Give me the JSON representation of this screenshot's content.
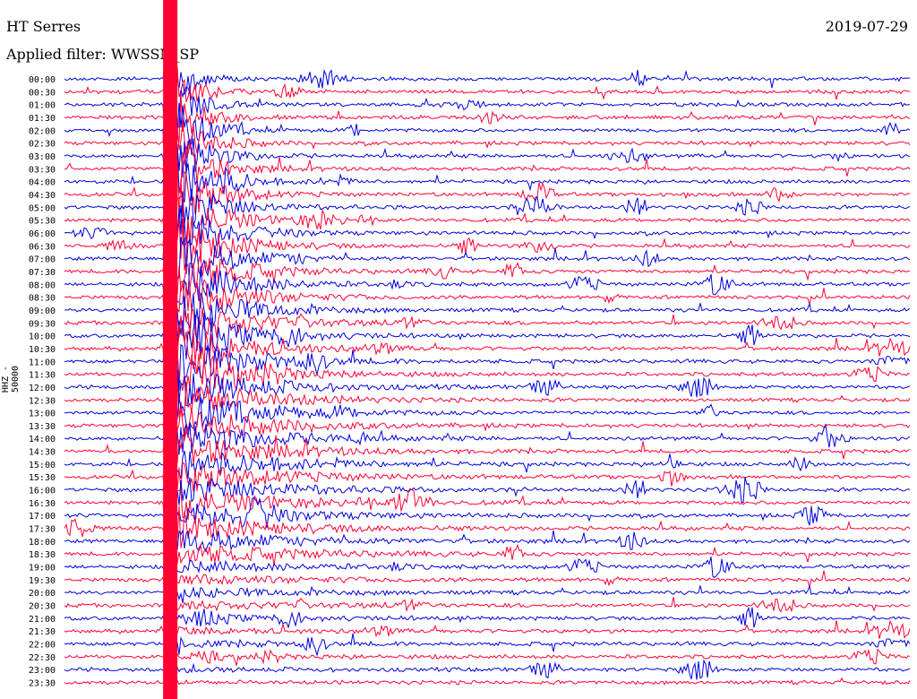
{
  "header": {
    "station": "HT Serres",
    "date": "2019-07-29",
    "filter": "Applied filter: WWSSN_SP"
  },
  "axis": {
    "ylabel": "HHZ - 50000"
  },
  "colors": {
    "even_trace": "#0000dd",
    "odd_trace": "#ff0033",
    "text": "#000000"
  },
  "chart_data": {
    "type": "line",
    "title": "HT Serres",
    "channel": "HHZ",
    "filter": "WWSSN_SP",
    "scale": 50000,
    "rows": [
      "00:00",
      "00:30",
      "01:00",
      "01:30",
      "02:00",
      "02:30",
      "03:00",
      "03:30",
      "04:00",
      "04:30",
      "05:00",
      "05:30",
      "06:00",
      "06:30",
      "07:00",
      "07:30",
      "08:00",
      "08:30",
      "09:00",
      "09:30",
      "10:00",
      "10:30",
      "11:00",
      "11:30",
      "12:00",
      "12:30",
      "13:00",
      "13:30",
      "14:00",
      "14:30",
      "15:00",
      "15:30",
      "16:00",
      "16:30",
      "17:00",
      "17:30",
      "18:00",
      "18:30",
      "19:00",
      "19:30",
      "20:00",
      "20:30",
      "21:00",
      "21:30",
      "22:00",
      "22:30",
      "23:00",
      "23:30"
    ],
    "minutes_per_row": 30,
    "large_event": {
      "start_row": 0,
      "start_minute": 3.5,
      "note": "major saturated signal"
    }
  }
}
